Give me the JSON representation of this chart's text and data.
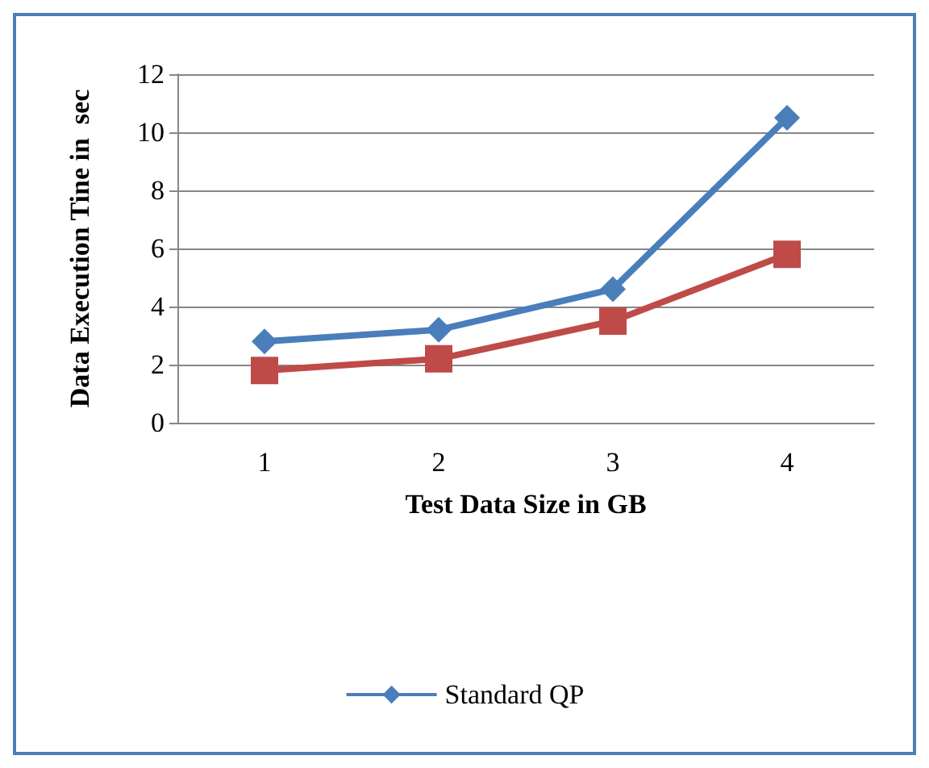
{
  "chart_data": {
    "type": "line",
    "xlabel": "Test Data Size in GB",
    "ylabel": "Data Execution Tine in  sec",
    "categories": [
      "1",
      "2",
      "3",
      "4"
    ],
    "series": [
      {
        "name": "Standard QP",
        "color": "#4a7ebb",
        "marker": "diamond",
        "values": [
          2.8,
          3.2,
          4.6,
          10.5
        ]
      },
      {
        "color": "#be4b48",
        "marker": "square",
        "values": [
          1.8,
          2.2,
          3.5,
          5.8
        ]
      }
    ],
    "ylim": [
      0,
      12
    ],
    "yticks": [
      0,
      2,
      4,
      6,
      8,
      10,
      12
    ],
    "grid": "y",
    "legend": "bottom"
  }
}
